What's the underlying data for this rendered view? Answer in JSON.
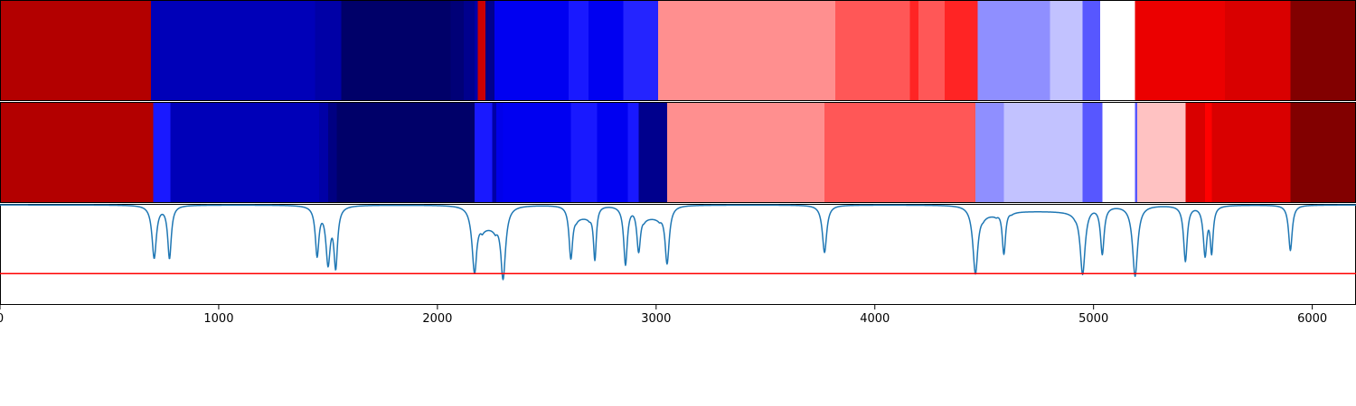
{
  "chart_data": {
    "type": "heatmap",
    "xlim": [
      0,
      6200
    ],
    "x_ticks": [
      0,
      1000,
      2000,
      3000,
      4000,
      5000,
      6000
    ],
    "x_tick_labels": [
      "0",
      "1000",
      "2000",
      "3000",
      "4000",
      "5000",
      "6000"
    ],
    "colormap": "seismic",
    "rows": [
      {
        "segments": [
          {
            "start": 0,
            "end": 690,
            "value": 0.8
          },
          {
            "start": 690,
            "end": 1440,
            "value": -0.7
          },
          {
            "start": 1440,
            "end": 1560,
            "value": -0.75
          },
          {
            "start": 1560,
            "end": 2060,
            "value": -0.92
          },
          {
            "start": 2060,
            "end": 2120,
            "value": -0.88
          },
          {
            "start": 2120,
            "end": 2170,
            "value": -0.82
          },
          {
            "start": 2170,
            "end": 2185,
            "value": -0.75
          },
          {
            "start": 2185,
            "end": 2220,
            "value": 0.7
          },
          {
            "start": 2220,
            "end": 2230,
            "value": -0.85
          },
          {
            "start": 2230,
            "end": 2260,
            "value": -0.82
          },
          {
            "start": 2260,
            "end": 2600,
            "value": -0.54
          },
          {
            "start": 2600,
            "end": 2690,
            "value": -0.45
          },
          {
            "start": 2690,
            "end": 2850,
            "value": -0.54
          },
          {
            "start": 2850,
            "end": 3010,
            "value": -0.43
          },
          {
            "start": 3010,
            "end": 3820,
            "value": 0.22
          },
          {
            "start": 3820,
            "end": 4160,
            "value": 0.33
          },
          {
            "start": 4160,
            "end": 4200,
            "value": 0.43
          },
          {
            "start": 4200,
            "end": 4320,
            "value": 0.33
          },
          {
            "start": 4320,
            "end": 4470,
            "value": 0.43
          },
          {
            "start": 4470,
            "end": 4800,
            "value": -0.22
          },
          {
            "start": 4800,
            "end": 4950,
            "value": -0.12
          },
          {
            "start": 4950,
            "end": 5030,
            "value": -0.33
          },
          {
            "start": 5030,
            "end": 5190,
            "value": 0.0
          },
          {
            "start": 5190,
            "end": 5600,
            "value": 0.58
          },
          {
            "start": 5600,
            "end": 5900,
            "value": 0.65
          },
          {
            "start": 5900,
            "end": 6200,
            "value": 0.99
          }
        ]
      },
      {
        "segments": [
          {
            "start": 0,
            "end": 700,
            "value": 0.8
          },
          {
            "start": 700,
            "end": 780,
            "value": -0.45
          },
          {
            "start": 780,
            "end": 1460,
            "value": -0.7
          },
          {
            "start": 1460,
            "end": 1500,
            "value": -0.75
          },
          {
            "start": 1500,
            "end": 1540,
            "value": -0.85
          },
          {
            "start": 1540,
            "end": 2170,
            "value": -0.92
          },
          {
            "start": 2170,
            "end": 2250,
            "value": -0.45
          },
          {
            "start": 2250,
            "end": 2270,
            "value": -0.75
          },
          {
            "start": 2270,
            "end": 2300,
            "value": -0.56
          },
          {
            "start": 2300,
            "end": 2610,
            "value": -0.54
          },
          {
            "start": 2610,
            "end": 2730,
            "value": -0.45
          },
          {
            "start": 2730,
            "end": 2870,
            "value": -0.54
          },
          {
            "start": 2870,
            "end": 2920,
            "value": -0.45
          },
          {
            "start": 2920,
            "end": 3050,
            "value": -0.82
          },
          {
            "start": 3050,
            "end": 3770,
            "value": 0.22
          },
          {
            "start": 3770,
            "end": 4460,
            "value": 0.33
          },
          {
            "start": 4460,
            "end": 4590,
            "value": -0.22
          },
          {
            "start": 4590,
            "end": 4950,
            "value": -0.12
          },
          {
            "start": 4950,
            "end": 5040,
            "value": -0.33
          },
          {
            "start": 5040,
            "end": 5190,
            "value": 0.0
          },
          {
            "start": 5190,
            "end": 5200,
            "value": -0.33
          },
          {
            "start": 5200,
            "end": 5420,
            "value": 0.12
          },
          {
            "start": 5420,
            "end": 5510,
            "value": 0.65
          },
          {
            "start": 5510,
            "end": 5540,
            "value": 0.5
          },
          {
            "start": 5540,
            "end": 5900,
            "value": 0.65
          },
          {
            "start": 5900,
            "end": 6200,
            "value": 0.99
          }
        ]
      }
    ],
    "signal": {
      "color": "#1f77b4",
      "ylim": [
        0,
        1
      ],
      "baseline": 0.99,
      "threshold": 0.31,
      "threshold_color": "#ff0000",
      "dips": [
        {
          "x": 705,
          "depth": 0.52,
          "width": 12
        },
        {
          "x": 775,
          "depth": 0.52,
          "width": 10
        },
        {
          "x": 1450,
          "depth": 0.48,
          "width": 10
        },
        {
          "x": 1500,
          "depth": 0.55,
          "width": 12
        },
        {
          "x": 1535,
          "depth": 0.58,
          "width": 10
        },
        {
          "x": 2170,
          "depth": 0.67,
          "width": 14
        },
        {
          "x": 2300,
          "depth": 0.73,
          "width": 14
        },
        {
          "x": 2610,
          "depth": 0.53,
          "width": 10
        },
        {
          "x": 2720,
          "depth": 0.54,
          "width": 8
        },
        {
          "x": 2860,
          "depth": 0.58,
          "width": 10
        },
        {
          "x": 2920,
          "depth": 0.45,
          "width": 10
        },
        {
          "x": 3050,
          "depth": 0.58,
          "width": 12
        },
        {
          "x": 3770,
          "depth": 0.47,
          "width": 12
        },
        {
          "x": 4460,
          "depth": 0.68,
          "width": 14
        },
        {
          "x": 4590,
          "depth": 0.48,
          "width": 10
        },
        {
          "x": 4950,
          "depth": 0.68,
          "width": 14
        },
        {
          "x": 5040,
          "depth": 0.47,
          "width": 10
        },
        {
          "x": 5190,
          "depth": 0.7,
          "width": 14
        },
        {
          "x": 5420,
          "depth": 0.55,
          "width": 10
        },
        {
          "x": 5510,
          "depth": 0.48,
          "width": 10
        },
        {
          "x": 5540,
          "depth": 0.44,
          "width": 8
        },
        {
          "x": 5900,
          "depth": 0.45,
          "width": 10
        }
      ],
      "plateaus": [
        {
          "start": 2180,
          "end": 2290,
          "level": 0.8
        },
        {
          "start": 2610,
          "end": 2720,
          "level": 0.88
        },
        {
          "start": 2920,
          "end": 3040,
          "level": 0.88
        },
        {
          "start": 4470,
          "end": 4580,
          "level": 0.91
        },
        {
          "start": 4600,
          "end": 4940,
          "level": 0.93
        }
      ]
    }
  }
}
